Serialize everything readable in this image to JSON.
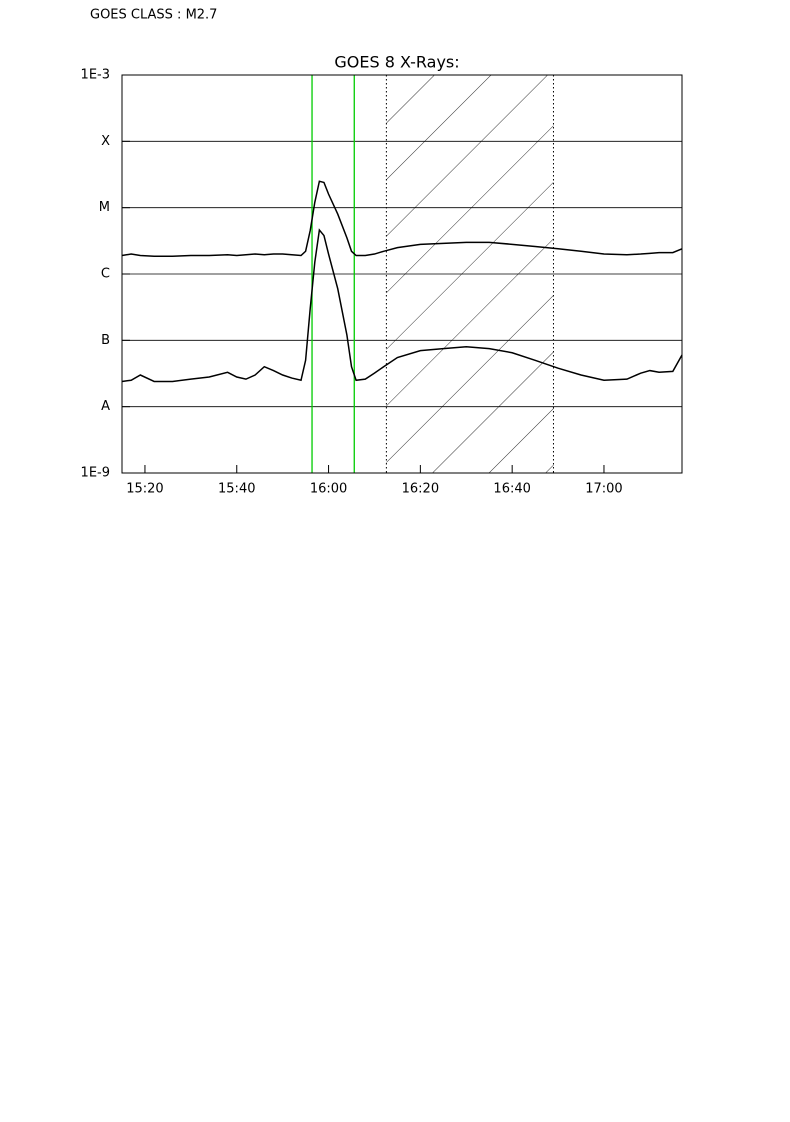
{
  "chart_data": {
    "type": "line",
    "header": "GOES CLASS : M2.7",
    "title": "GOES 8 X-Rays:",
    "x": [
      915,
      917,
      919,
      922,
      926,
      930,
      934,
      938,
      940,
      942,
      944,
      946,
      948,
      950,
      952,
      954,
      955,
      956,
      957,
      958,
      959,
      960,
      962,
      964,
      965,
      966,
      968,
      970,
      972,
      975,
      980,
      985,
      990,
      995,
      1000,
      1005,
      1010,
      1015,
      1020,
      1025,
      1028,
      1030,
      1032,
      1035,
      1037
    ],
    "series": [
      {
        "color": "#000000",
        "values": [
          1.9e-06,
          2e-06,
          1.9e-06,
          1.85e-06,
          1.85e-06,
          1.9e-06,
          1.9e-06,
          1.95e-06,
          1.9e-06,
          1.95e-06,
          2e-06,
          1.95e-06,
          2e-06,
          2e-06,
          1.95e-06,
          1.9e-06,
          2.2e-06,
          4.5e-06,
          1.2e-05,
          2.5e-05,
          2.4e-05,
          1.6e-05,
          8e-06,
          3.5e-06,
          2.2e-06,
          1.9e-06,
          1.9e-06,
          2e-06,
          2.2e-06,
          2.5e-06,
          2.8e-06,
          2.9e-06,
          3e-06,
          3e-06,
          2.8e-06,
          2.6e-06,
          2.4e-06,
          2.2e-06,
          2e-06,
          1.95e-06,
          2e-06,
          2.05e-06,
          2.1e-06,
          2.1e-06,
          2.4e-06
        ]
      },
      {
        "color": "#000000",
        "values": [
          2.4e-08,
          2.5e-08,
          3e-08,
          2.4e-08,
          2.4e-08,
          2.6e-08,
          2.8e-08,
          3.3e-08,
          2.8e-08,
          2.6e-08,
          3e-08,
          4e-08,
          3.5e-08,
          3e-08,
          2.7e-08,
          2.5e-08,
          5e-08,
          3e-07,
          1.5e-06,
          4.6e-06,
          3.8e-06,
          2e-06,
          6e-07,
          1.2e-07,
          4e-08,
          2.5e-08,
          2.6e-08,
          3.2e-08,
          4e-08,
          5.5e-08,
          7e-08,
          7.5e-08,
          8e-08,
          7.5e-08,
          6.5e-08,
          5e-08,
          3.8e-08,
          3e-08,
          2.5e-08,
          2.6e-08,
          3.2e-08,
          3.5e-08,
          3.3e-08,
          3.4e-08,
          6e-08
        ]
      }
    ],
    "xlim": [
      915,
      1037
    ],
    "xticks": [
      {
        "value": 920,
        "label": "15:20"
      },
      {
        "value": 940,
        "label": "15:40"
      },
      {
        "value": 960,
        "label": "16:00"
      },
      {
        "value": 980,
        "label": "16:20"
      },
      {
        "value": 1000,
        "label": "16:40"
      },
      {
        "value": 1020,
        "label": "17:00"
      }
    ],
    "ylog": true,
    "ylim": [
      1e-09,
      0.001
    ],
    "yticks": [
      {
        "value": 1e-09,
        "label": "1E-9"
      },
      {
        "value": 1e-08,
        "label": "A"
      },
      {
        "value": 1e-07,
        "label": "B"
      },
      {
        "value": 1e-06,
        "label": "C"
      },
      {
        "value": 1e-05,
        "label": "M"
      },
      {
        "value": 0.0001,
        "label": "X"
      },
      {
        "value": 0.001,
        "label": "1E-3"
      }
    ],
    "grid": true,
    "vlines": {
      "color": "#00cc00",
      "x": [
        956.4,
        965.6
      ]
    },
    "hatched_interval": [
      972.6,
      1009
    ]
  }
}
